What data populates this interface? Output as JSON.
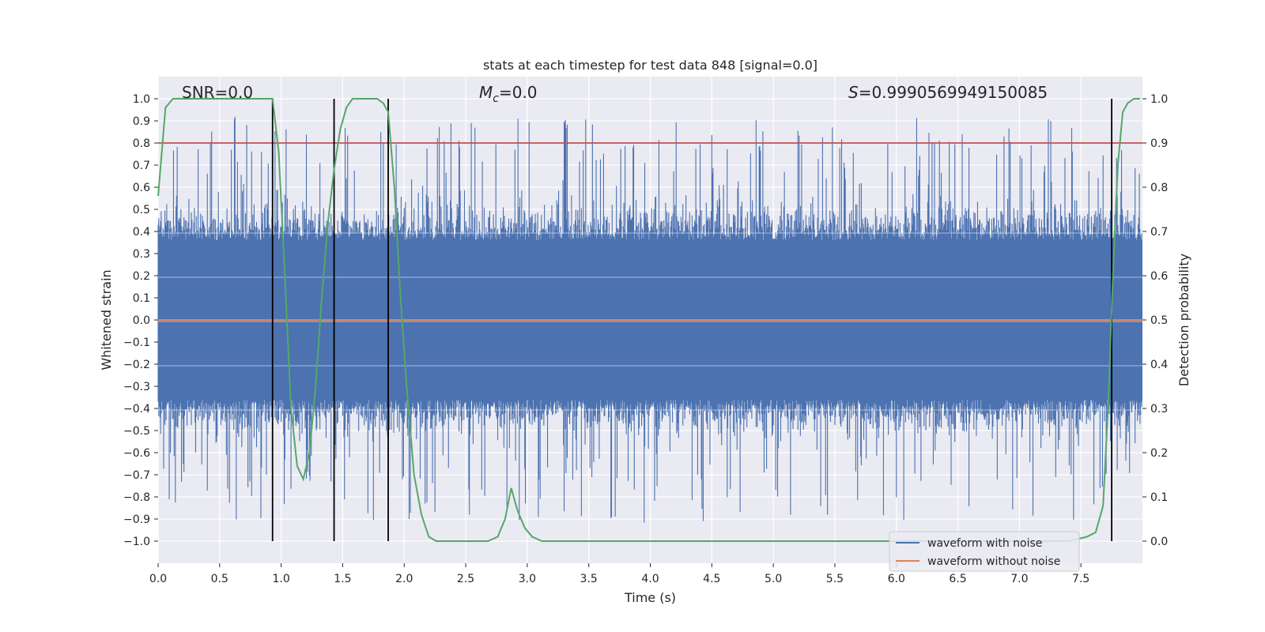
{
  "chart_data": {
    "type": "line",
    "title": "stats at each timestep for test data 848 [signal=0.0]",
    "xlabel": "Time (s)",
    "ylabel": "Whitened strain",
    "y2label": "Detection probability",
    "xlim": [
      0.0,
      8.0
    ],
    "ylim": [
      -1.1,
      1.1
    ],
    "y2lim": [
      -0.05,
      1.05
    ],
    "grid": true,
    "x_ticks": [
      0.0,
      0.5,
      1.0,
      1.5,
      2.0,
      2.5,
      3.0,
      3.5,
      4.0,
      4.5,
      5.0,
      5.5,
      6.0,
      6.5,
      7.0,
      7.5
    ],
    "x_tick_labels": [
      "0.0",
      "0.5",
      "1.0",
      "1.5",
      "2.0",
      "2.5",
      "3.0",
      "3.5",
      "4.0",
      "4.5",
      "5.0",
      "5.5",
      "6.0",
      "6.5",
      "7.0",
      "7.5"
    ],
    "y_ticks": [
      1.0,
      0.9,
      0.8,
      0.7,
      0.6,
      0.5,
      0.4,
      0.3,
      0.2,
      0.1,
      0.0,
      -0.1,
      -0.2,
      -0.3,
      -0.4,
      -0.5,
      -0.6,
      -0.7,
      -0.8,
      -0.9,
      -1.0
    ],
    "y_tick_labels": [
      "1.0",
      "0.9",
      "0.8",
      "0.7",
      "0.6",
      "0.5",
      "0.4",
      "0.3",
      "0.2",
      "0.1",
      "0.0",
      "−0.1",
      "−0.2",
      "−0.3",
      "−0.4",
      "−0.5",
      "−0.6",
      "−0.7",
      "−0.8",
      "−0.9",
      "−1.0"
    ],
    "y2_ticks": [
      1.0,
      0.9,
      0.8,
      0.7,
      0.6,
      0.5,
      0.4,
      0.3,
      0.2,
      0.1,
      0.0
    ],
    "y2_tick_labels": [
      "1.0",
      "0.9",
      "0.8",
      "0.7",
      "0.6",
      "0.5",
      "0.4",
      "0.3",
      "0.2",
      "0.1",
      "0.0"
    ],
    "annotations": {
      "snr": "SNR=0.0",
      "mc_prefix": "M",
      "mc_sub": "c",
      "mc_value": "=0.0",
      "s_prefix": "S",
      "s_value": "=0.9990569949150085"
    },
    "threshold_line": {
      "axis": "y2",
      "value": 0.9,
      "color": "#c44e52"
    },
    "vertical_markers": [
      0.93,
      1.43,
      1.87,
      7.75
    ],
    "noise_series": {
      "name": "waveform with noise",
      "color": "#4c72b0",
      "note": "dense noise band; core amplitude ~0.36, peaks up to ~0.95, troughs down to ~-0.99"
    },
    "clean_series": {
      "name": "waveform without noise",
      "color": "#dd8452",
      "value": 0.0
    },
    "probability_series": {
      "name": "Detection probability",
      "color": "#55a868",
      "x": [
        0.0,
        0.06,
        0.12,
        0.2,
        0.3,
        0.4,
        0.5,
        0.6,
        0.7,
        0.8,
        0.88,
        0.93,
        0.98,
        1.03,
        1.08,
        1.13,
        1.18,
        1.23,
        1.28,
        1.33,
        1.38,
        1.43,
        1.48,
        1.53,
        1.58,
        1.63,
        1.68,
        1.73,
        1.78,
        1.83,
        1.87,
        1.92,
        1.97,
        2.02,
        2.08,
        2.14,
        2.2,
        2.26,
        2.35,
        2.5,
        2.6,
        2.68,
        2.76,
        2.82,
        2.87,
        2.92,
        2.98,
        3.04,
        3.12,
        3.2,
        3.35,
        3.6,
        4.0,
        5.0,
        6.0,
        7.0,
        7.4,
        7.55,
        7.62,
        7.68,
        7.72,
        7.76,
        7.8,
        7.84,
        7.88,
        7.93,
        7.98
      ],
      "y": [
        0.78,
        0.98,
        1.0,
        1.0,
        1.0,
        1.0,
        1.0,
        1.0,
        1.0,
        1.0,
        1.0,
        1.0,
        0.88,
        0.6,
        0.3,
        0.17,
        0.14,
        0.2,
        0.35,
        0.55,
        0.72,
        0.84,
        0.93,
        0.98,
        1.0,
        1.0,
        1.0,
        1.0,
        1.0,
        0.99,
        0.97,
        0.8,
        0.55,
        0.35,
        0.15,
        0.06,
        0.01,
        0.0,
        0.0,
        0.0,
        0.0,
        0.0,
        0.01,
        0.05,
        0.12,
        0.07,
        0.03,
        0.01,
        0.0,
        0.0,
        0.0,
        0.0,
        0.0,
        0.0,
        0.0,
        0.0,
        0.0,
        0.01,
        0.02,
        0.08,
        0.3,
        0.6,
        0.85,
        0.97,
        0.99,
        1.0,
        1.0
      ]
    },
    "legend": {
      "location": "lower-right",
      "entries": [
        {
          "label": "waveform with noise",
          "color": "#4c72b0"
        },
        {
          "label": "waveform without noise",
          "color": "#dd8452"
        }
      ]
    }
  }
}
